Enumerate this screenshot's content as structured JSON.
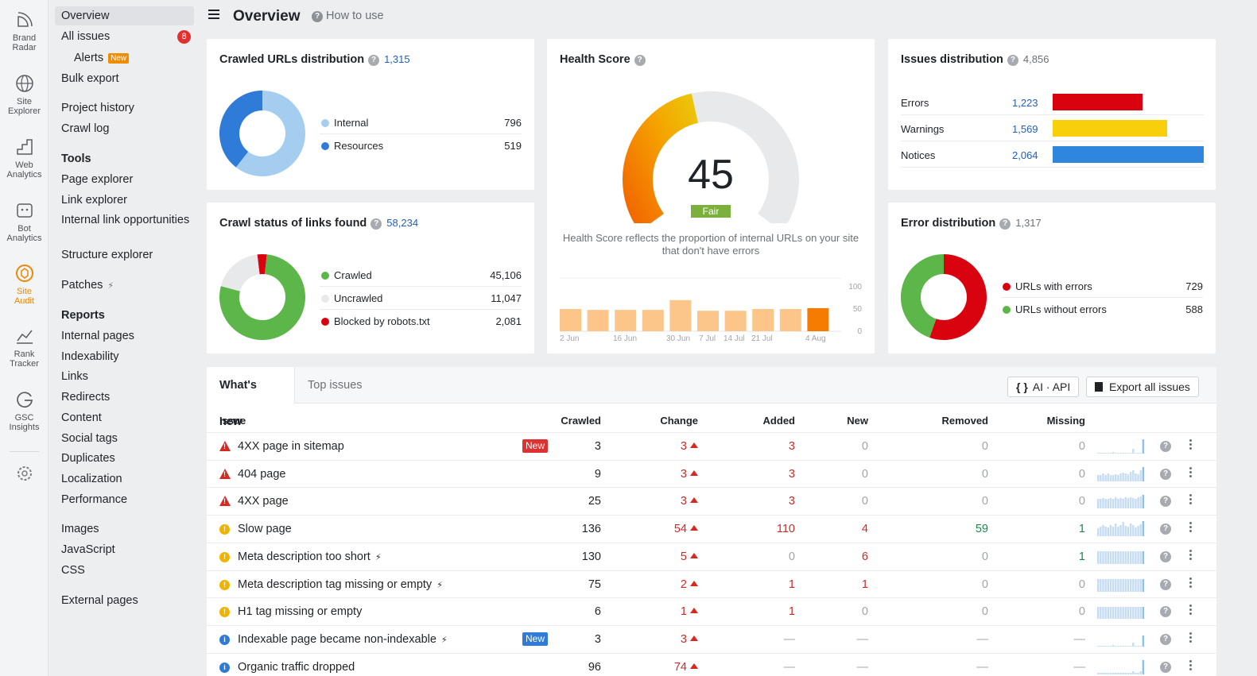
{
  "rail": [
    {
      "label1": "Brand",
      "label2": "Radar",
      "icon": "brand-radar-icon"
    },
    {
      "label1": "Site",
      "label2": "Explorer",
      "icon": "site-explorer-icon"
    },
    {
      "label1": "Web",
      "label2": "Analytics",
      "icon": "web-analytics-icon"
    },
    {
      "label1": "Bot",
      "label2": "Analytics",
      "icon": "bot-analytics-icon"
    },
    {
      "label1": "Site",
      "label2": "Audit",
      "icon": "site-audit-icon"
    },
    {
      "label1": "Rank",
      "label2": "Tracker",
      "icon": "rank-tracker-icon"
    },
    {
      "label1": "GSC",
      "label2": "Insights",
      "icon": "gsc-insights-icon"
    }
  ],
  "nav": {
    "overview": "Overview",
    "all_issues": "All issues",
    "all_issues_count": "8",
    "alerts": "Alerts",
    "new_badge": "New",
    "bulk_export": "Bulk export",
    "project_history": "Project history",
    "crawl_log": "Crawl log",
    "tools": "Tools",
    "page_explorer": "Page explorer",
    "link_explorer": "Link explorer",
    "internal_link_opportunities": "Internal link opportunities",
    "structure_explorer": "Structure explorer",
    "patches": "Patches",
    "reports": "Reports",
    "internal_pages": "Internal pages",
    "indexability": "Indexability",
    "links": "Links",
    "redirects": "Redirects",
    "content": "Content",
    "social_tags": "Social tags",
    "duplicates": "Duplicates",
    "localization": "Localization",
    "performance": "Performance",
    "images": "Images",
    "javascript": "JavaScript",
    "css": "CSS",
    "external_pages": "External pages"
  },
  "header": {
    "title": "Overview",
    "how_to_use": "How to use"
  },
  "crawled_urls": {
    "title": "Crawled URLs distribution",
    "total": "1,315",
    "items": [
      {
        "label": "Internal",
        "value": "796",
        "color": "#a5cdf0"
      },
      {
        "label": "Resources",
        "value": "519",
        "color": "#2f7bd8"
      }
    ]
  },
  "health_score": {
    "title": "Health Score",
    "score": "45",
    "rating": "Fair",
    "score_value": 45,
    "description": "Health Score reflects the proportion of internal URLs on your site that don't have errors",
    "yticks": [
      "100",
      "50",
      "0"
    ],
    "xticks": [
      "2 Jun",
      "16 Jun",
      "30 Jun",
      "7 Jul",
      "14 Jul",
      "21 Jul",
      "4 Aug"
    ]
  },
  "issues_distribution": {
    "title": "Issues distribution",
    "total": "4,856",
    "items": [
      {
        "label": "Errors",
        "value": "1,223",
        "num": 1223,
        "color": "#d9030f"
      },
      {
        "label": "Warnings",
        "value": "1,569",
        "num": 1569,
        "color": "#f7cf0a"
      },
      {
        "label": "Notices",
        "value": "2,064",
        "num": 2064,
        "color": "#2f86dd"
      }
    ]
  },
  "crawl_status": {
    "title": "Crawl status of links found",
    "total": "58,234",
    "items": [
      {
        "label": "Crawled",
        "value": "45,106",
        "color": "#5db64a"
      },
      {
        "label": "Uncrawled",
        "value": "11,047",
        "color": "#e8e9eb"
      },
      {
        "label": "Blocked by robots.txt",
        "value": "2,081",
        "color": "#d9030f"
      }
    ]
  },
  "error_distribution": {
    "title": "Error distribution",
    "total": "1,317",
    "items": [
      {
        "label": "URLs with errors",
        "value": "729",
        "color": "#d9030f"
      },
      {
        "label": "URLs without errors",
        "value": "588",
        "color": "#5db64a"
      }
    ]
  },
  "table": {
    "tabs": [
      "What's new",
      "Top issues"
    ],
    "ai_api": "AI · API",
    "export": "Export all issues",
    "columns": [
      "Issue",
      "Crawled",
      "Change",
      "Added",
      "New",
      "Removed",
      "Missing"
    ],
    "rows": [
      {
        "type": "error",
        "issue": "4XX page in sitemap",
        "tag": "New",
        "bolt": false,
        "crawled": "3",
        "change": "3",
        "added": "3",
        "new": "0",
        "removed": "0",
        "missing": "0"
      },
      {
        "type": "error",
        "issue": "404 page",
        "tag": "",
        "bolt": false,
        "crawled": "9",
        "change": "3",
        "added": "3",
        "new": "0",
        "removed": "0",
        "missing": "0"
      },
      {
        "type": "error",
        "issue": "4XX page",
        "tag": "",
        "bolt": false,
        "crawled": "25",
        "change": "3",
        "added": "3",
        "new": "0",
        "removed": "0",
        "missing": "0"
      },
      {
        "type": "warning",
        "issue": "Slow page",
        "tag": "",
        "bolt": false,
        "crawled": "136",
        "change": "54",
        "added": "110",
        "new": "4",
        "removed": "59",
        "missing": "1"
      },
      {
        "type": "warning",
        "issue": "Meta description too short",
        "tag": "",
        "bolt": true,
        "crawled": "130",
        "change": "5",
        "added": "0",
        "new": "6",
        "removed": "0",
        "missing": "1"
      },
      {
        "type": "warning",
        "issue": "Meta description tag missing or empty",
        "tag": "",
        "bolt": true,
        "crawled": "75",
        "change": "2",
        "added": "1",
        "new": "1",
        "removed": "0",
        "missing": "0"
      },
      {
        "type": "warning",
        "issue": "H1 tag missing or empty",
        "tag": "",
        "bolt": false,
        "crawled": "6",
        "change": "1",
        "added": "1",
        "new": "0",
        "removed": "0",
        "missing": "0"
      },
      {
        "type": "info",
        "issue": "Indexable page became non-indexable",
        "tag": "New",
        "bolt": true,
        "crawled": "3",
        "change": "3",
        "added": "—",
        "new": "—",
        "removed": "—",
        "missing": "—"
      },
      {
        "type": "info",
        "issue": "Organic traffic dropped",
        "tag": "",
        "bolt": false,
        "crawled": "96",
        "change": "74",
        "added": "—",
        "new": "—",
        "removed": "—",
        "missing": "—"
      }
    ]
  }
}
